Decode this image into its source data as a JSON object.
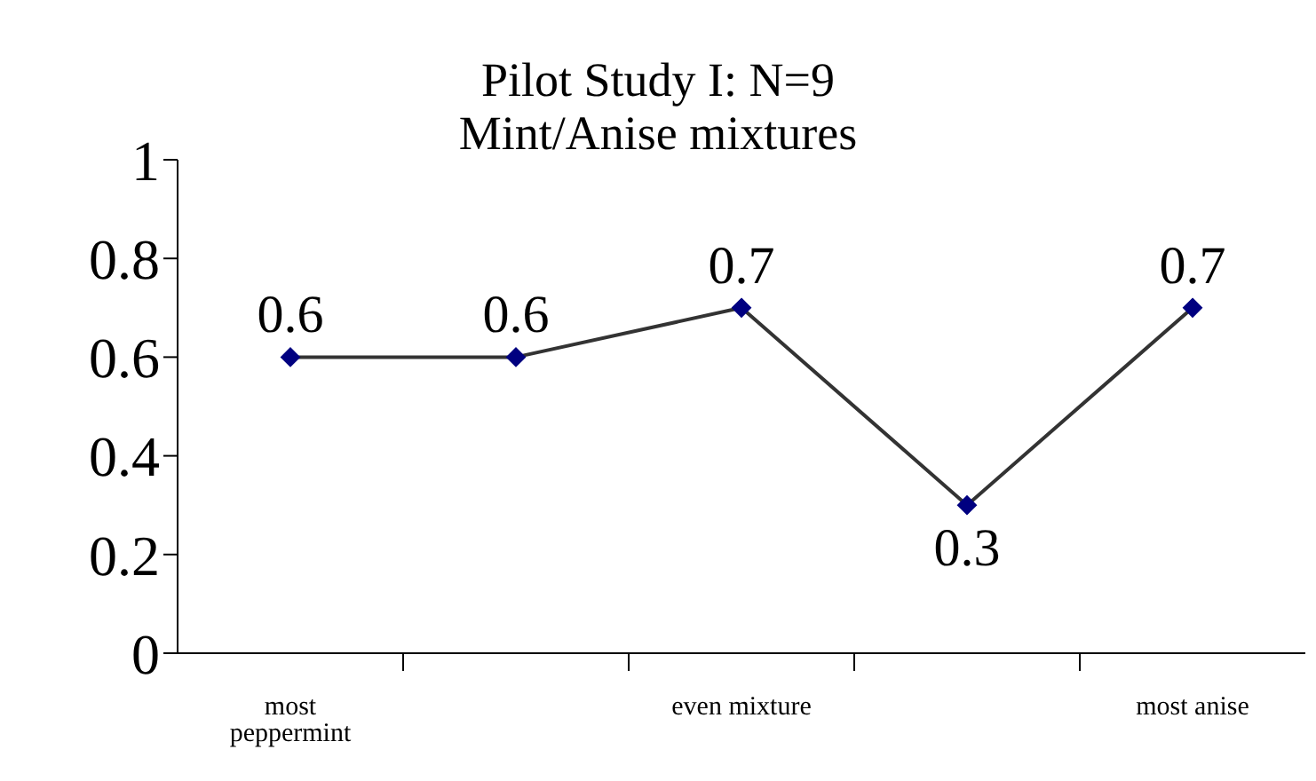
{
  "chart_data": {
    "type": "line",
    "title": "Pilot Study I: N=9",
    "subtitle": "Mint/Anise mixtures",
    "categories": [
      "most peppermint",
      null,
      "even mixture",
      null,
      "most anise"
    ],
    "series": [
      {
        "color": "#000080",
        "values": [
          0.6,
          0.6,
          0.7,
          0.3,
          0.7
        ]
      }
    ],
    "ylim": [
      0,
      1
    ],
    "yticks": [
      0,
      0.2,
      0.4,
      0.6,
      0.8,
      1
    ],
    "grid": false,
    "legend": false,
    "marker": "diamond",
    "line_style": "solid",
    "data_labels": true
  }
}
